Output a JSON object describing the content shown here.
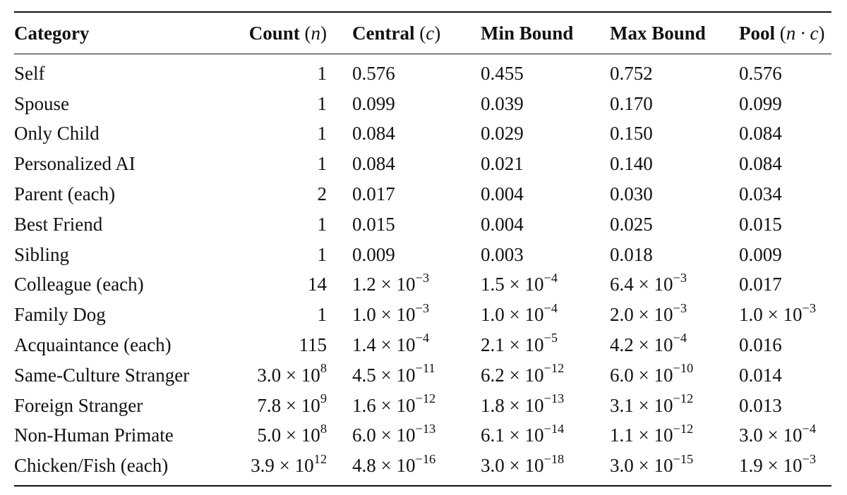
{
  "table": {
    "headers": [
      {
        "label": "Category",
        "symbol": ""
      },
      {
        "label": "Count",
        "symbol": "n"
      },
      {
        "label": "Central",
        "symbol": "c"
      },
      {
        "label": "Min Bound",
        "symbol": ""
      },
      {
        "label": "Max Bound",
        "symbol": ""
      },
      {
        "label": "Pool",
        "symbol": "n · c"
      }
    ],
    "rows": [
      {
        "category": "Self",
        "count": {
          "m": "1",
          "e": ""
        },
        "central": {
          "m": "0.576",
          "e": ""
        },
        "min": {
          "m": "0.455",
          "e": ""
        },
        "max": {
          "m": "0.752",
          "e": ""
        },
        "pool": {
          "m": "0.576",
          "e": ""
        }
      },
      {
        "category": "Spouse",
        "count": {
          "m": "1",
          "e": ""
        },
        "central": {
          "m": "0.099",
          "e": ""
        },
        "min": {
          "m": "0.039",
          "e": ""
        },
        "max": {
          "m": "0.170",
          "e": ""
        },
        "pool": {
          "m": "0.099",
          "e": ""
        }
      },
      {
        "category": "Only Child",
        "count": {
          "m": "1",
          "e": ""
        },
        "central": {
          "m": "0.084",
          "e": ""
        },
        "min": {
          "m": "0.029",
          "e": ""
        },
        "max": {
          "m": "0.150",
          "e": ""
        },
        "pool": {
          "m": "0.084",
          "e": ""
        }
      },
      {
        "category": "Personalized AI",
        "count": {
          "m": "1",
          "e": ""
        },
        "central": {
          "m": "0.084",
          "e": ""
        },
        "min": {
          "m": "0.021",
          "e": ""
        },
        "max": {
          "m": "0.140",
          "e": ""
        },
        "pool": {
          "m": "0.084",
          "e": ""
        }
      },
      {
        "category": "Parent (each)",
        "count": {
          "m": "2",
          "e": ""
        },
        "central": {
          "m": "0.017",
          "e": ""
        },
        "min": {
          "m": "0.004",
          "e": ""
        },
        "max": {
          "m": "0.030",
          "e": ""
        },
        "pool": {
          "m": "0.034",
          "e": ""
        }
      },
      {
        "category": "Best Friend",
        "count": {
          "m": "1",
          "e": ""
        },
        "central": {
          "m": "0.015",
          "e": ""
        },
        "min": {
          "m": "0.004",
          "e": ""
        },
        "max": {
          "m": "0.025",
          "e": ""
        },
        "pool": {
          "m": "0.015",
          "e": ""
        }
      },
      {
        "category": "Sibling",
        "count": {
          "m": "1",
          "e": ""
        },
        "central": {
          "m": "0.009",
          "e": ""
        },
        "min": {
          "m": "0.003",
          "e": ""
        },
        "max": {
          "m": "0.018",
          "e": ""
        },
        "pool": {
          "m": "0.009",
          "e": ""
        }
      },
      {
        "category": "Colleague (each)",
        "count": {
          "m": "14",
          "e": ""
        },
        "central": {
          "m": "1.2 × 10",
          "e": "−3"
        },
        "min": {
          "m": "1.5 × 10",
          "e": "−4"
        },
        "max": {
          "m": "6.4 × 10",
          "e": "−3"
        },
        "pool": {
          "m": "0.017",
          "e": ""
        }
      },
      {
        "category": "Family Dog",
        "count": {
          "m": "1",
          "e": ""
        },
        "central": {
          "m": "1.0 × 10",
          "e": "−3"
        },
        "min": {
          "m": "1.0 × 10",
          "e": "−4"
        },
        "max": {
          "m": "2.0 × 10",
          "e": "−3"
        },
        "pool": {
          "m": "1.0 × 10",
          "e": "−3"
        }
      },
      {
        "category": "Acquaintance (each)",
        "count": {
          "m": "115",
          "e": ""
        },
        "central": {
          "m": "1.4 × 10",
          "e": "−4"
        },
        "min": {
          "m": "2.1 × 10",
          "e": "−5"
        },
        "max": {
          "m": "4.2 × 10",
          "e": "−4"
        },
        "pool": {
          "m": "0.016",
          "e": ""
        }
      },
      {
        "category": "Same-Culture Stranger",
        "count": {
          "m": "3.0 × 10",
          "e": "8"
        },
        "central": {
          "m": "4.5 × 10",
          "e": "−11"
        },
        "min": {
          "m": "6.2 × 10",
          "e": "−12"
        },
        "max": {
          "m": "6.0 × 10",
          "e": "−10"
        },
        "pool": {
          "m": "0.014",
          "e": ""
        }
      },
      {
        "category": "Foreign Stranger",
        "count": {
          "m": "7.8 × 10",
          "e": "9"
        },
        "central": {
          "m": "1.6 × 10",
          "e": "−12"
        },
        "min": {
          "m": "1.8 × 10",
          "e": "−13"
        },
        "max": {
          "m": "3.1 × 10",
          "e": "−12"
        },
        "pool": {
          "m": "0.013",
          "e": ""
        }
      },
      {
        "category": "Non-Human Primate",
        "count": {
          "m": "5.0 × 10",
          "e": "8"
        },
        "central": {
          "m": "6.0 × 10",
          "e": "−13"
        },
        "min": {
          "m": "6.1 × 10",
          "e": "−14"
        },
        "max": {
          "m": "1.1 × 10",
          "e": "−12"
        },
        "pool": {
          "m": "3.0 × 10",
          "e": "−4"
        }
      },
      {
        "category": "Chicken/Fish (each)",
        "count": {
          "m": "3.9 × 10",
          "e": "12"
        },
        "central": {
          "m": "4.8 × 10",
          "e": "−16"
        },
        "min": {
          "m": "3.0 × 10",
          "e": "−18"
        },
        "max": {
          "m": "3.0 × 10",
          "e": "−15"
        },
        "pool": {
          "m": "1.9 × 10",
          "e": "−3"
        }
      }
    ]
  }
}
